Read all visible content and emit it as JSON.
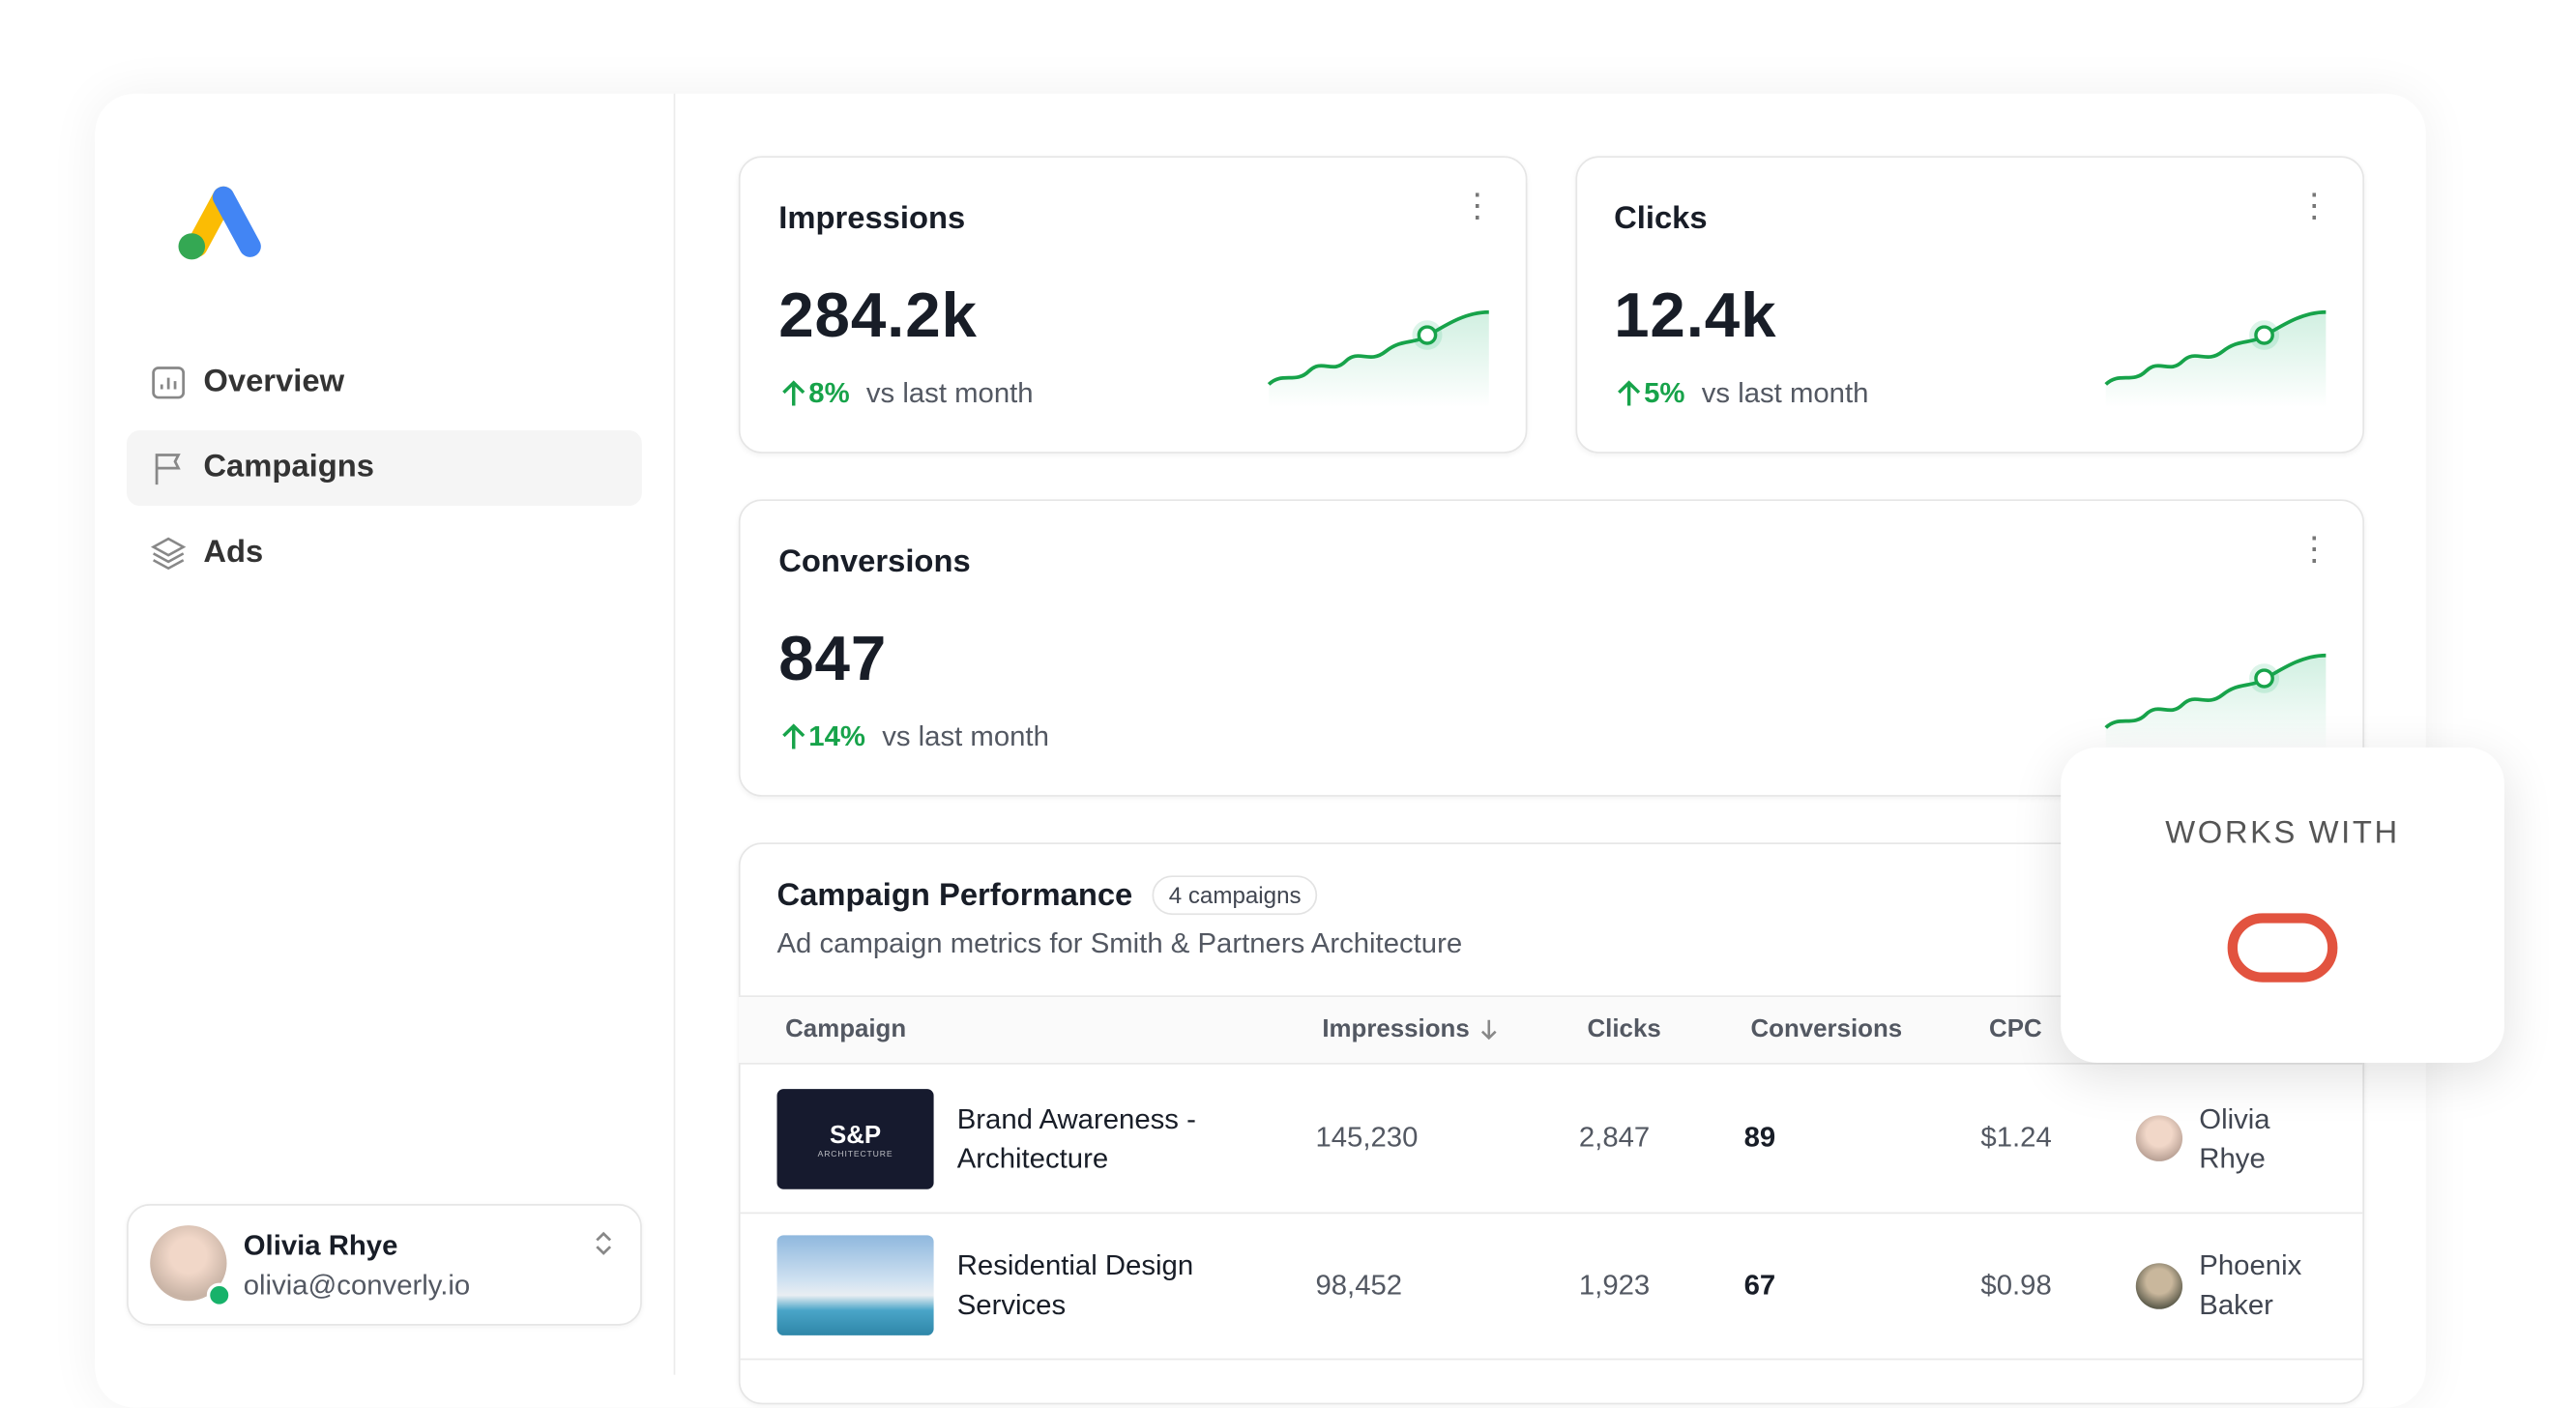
{
  "sidebar": {
    "nav": [
      "Overview",
      "Campaigns",
      "Ads"
    ],
    "user": {
      "name": "Olivia Rhye",
      "email": "olivia@converly.io"
    }
  },
  "stats": [
    {
      "title": "Impressions",
      "value": "284.2k",
      "change": "8%",
      "comparison": "vs last month"
    },
    {
      "title": "Clicks",
      "value": "12.4k",
      "change": "5%",
      "comparison": "vs last month"
    },
    {
      "title": "Conversions",
      "value": "847",
      "change": "14%",
      "comparison": "vs last month"
    }
  ],
  "table": {
    "title": "Campaign Performance",
    "badge": "4 campaigns",
    "subtitle": "Ad campaign metrics for Smith & Partners Architecture",
    "columns": [
      "Campaign",
      "Impressions",
      "Clicks",
      "Conversions",
      "CPC"
    ],
    "rows": [
      {
        "thumb": "S&P",
        "thumb_sub": "ARCHITECTURE",
        "campaign": "Brand Awareness - Architecture",
        "impressions": "145,230",
        "clicks": "2,847",
        "conversions": "89",
        "cpc": "$1.24",
        "owner": "Olivia Rhye"
      },
      {
        "campaign": "Residential Design Services",
        "impressions": "98,452",
        "clicks": "1,923",
        "conversions": "67",
        "cpc": "$0.98",
        "owner": "Phoenix Baker"
      }
    ]
  },
  "overlay": {
    "label": "WORKS WITH"
  }
}
